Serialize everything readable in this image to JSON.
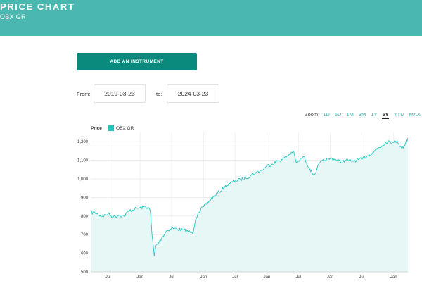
{
  "header": {
    "title": "PRICE CHART",
    "subtitle": "OBX GR"
  },
  "toolbar": {
    "add_instrument_label": "ADD AN INSTRUMENT"
  },
  "date_range": {
    "from_label": "From:",
    "from_value": "2019-03-23",
    "to_label": "to:",
    "to_value": "2024-03-23"
  },
  "zoom": {
    "label": "Zoom:",
    "options": [
      "1D",
      "5D",
      "1M",
      "3M",
      "1Y",
      "5Y",
      "YTD",
      "MAX"
    ],
    "active": "5Y"
  },
  "chart": {
    "price_label": "Price",
    "legend_label": "OBX GR"
  },
  "colors": {
    "header_bg": "#4ab8b0",
    "button_bg": "#098a7c",
    "series_line": "#22c6bf",
    "series_fill": "#e6f7f5",
    "zoom_link": "#3eb6ad"
  },
  "chart_data": {
    "type": "area",
    "title": "",
    "xlabel": "",
    "ylabel": "Price",
    "ylim": [
      500,
      1250
    ],
    "y_ticks": [
      500,
      600,
      700,
      800,
      900,
      1000,
      1100,
      1200
    ],
    "y_tick_labels": [
      "500",
      "600",
      "700",
      "800",
      "900",
      "1,000",
      "1,100",
      "1,200"
    ],
    "x_range": [
      "2019-03-23",
      "2024-03-23"
    ],
    "x_ticks": [
      {
        "date": "2019-07-01",
        "label": "Jul"
      },
      {
        "date": "2020-01-01",
        "label": "Jan"
      },
      {
        "date": "2020-07-01",
        "label": "Jul"
      },
      {
        "date": "2021-01-01",
        "label": "Jan"
      },
      {
        "date": "2021-07-01",
        "label": "Jul"
      },
      {
        "date": "2022-01-01",
        "label": "Jan"
      },
      {
        "date": "2022-07-01",
        "label": "Jul"
      },
      {
        "date": "2023-01-01",
        "label": "Jan"
      },
      {
        "date": "2023-07-01",
        "label": "Jul"
      },
      {
        "date": "2024-01-01",
        "label": "Jan"
      }
    ],
    "series": [
      {
        "name": "OBX GR",
        "points": [
          [
            "2019-03-23",
            815
          ],
          [
            "2019-04-15",
            820
          ],
          [
            "2019-05-10",
            805
          ],
          [
            "2019-06-01",
            800
          ],
          [
            "2019-07-01",
            812
          ],
          [
            "2019-08-01",
            795
          ],
          [
            "2019-09-01",
            805
          ],
          [
            "2019-10-01",
            800
          ],
          [
            "2019-11-01",
            830
          ],
          [
            "2019-12-01",
            838
          ],
          [
            "2020-01-01",
            845
          ],
          [
            "2020-02-01",
            850
          ],
          [
            "2020-02-20",
            845
          ],
          [
            "2020-03-01",
            820
          ],
          [
            "2020-03-10",
            700
          ],
          [
            "2020-03-23",
            585
          ],
          [
            "2020-04-01",
            640
          ],
          [
            "2020-04-20",
            660
          ],
          [
            "2020-05-10",
            690
          ],
          [
            "2020-06-01",
            720
          ],
          [
            "2020-07-01",
            735
          ],
          [
            "2020-08-01",
            730
          ],
          [
            "2020-09-01",
            725
          ],
          [
            "2020-10-01",
            720
          ],
          [
            "2020-10-30",
            705
          ],
          [
            "2020-11-15",
            780
          ],
          [
            "2020-12-01",
            820
          ],
          [
            "2021-01-01",
            850
          ],
          [
            "2021-02-01",
            880
          ],
          [
            "2021-03-01",
            905
          ],
          [
            "2021-04-01",
            930
          ],
          [
            "2021-05-01",
            955
          ],
          [
            "2021-06-01",
            975
          ],
          [
            "2021-07-01",
            990
          ],
          [
            "2021-08-01",
            995
          ],
          [
            "2021-09-01",
            1005
          ],
          [
            "2021-10-01",
            1020
          ],
          [
            "2021-11-01",
            1035
          ],
          [
            "2021-12-01",
            1045
          ],
          [
            "2022-01-01",
            1070
          ],
          [
            "2022-02-01",
            1080
          ],
          [
            "2022-03-01",
            1095
          ],
          [
            "2022-04-01",
            1105
          ],
          [
            "2022-05-01",
            1125
          ],
          [
            "2022-06-01",
            1150
          ],
          [
            "2022-06-20",
            1085
          ],
          [
            "2022-07-01",
            1095
          ],
          [
            "2022-08-01",
            1120
          ],
          [
            "2022-09-01",
            1060
          ],
          [
            "2022-09-28",
            1020
          ],
          [
            "2022-10-15",
            1050
          ],
          [
            "2022-11-01",
            1085
          ],
          [
            "2022-12-01",
            1100
          ],
          [
            "2023-01-01",
            1110
          ],
          [
            "2023-02-01",
            1105
          ],
          [
            "2023-03-01",
            1090
          ],
          [
            "2023-04-01",
            1100
          ],
          [
            "2023-05-01",
            1095
          ],
          [
            "2023-06-01",
            1100
          ],
          [
            "2023-07-01",
            1105
          ],
          [
            "2023-08-01",
            1125
          ],
          [
            "2023-09-01",
            1140
          ],
          [
            "2023-10-01",
            1165
          ],
          [
            "2023-10-31",
            1180
          ],
          [
            "2023-11-15",
            1195
          ],
          [
            "2023-12-01",
            1205
          ],
          [
            "2024-01-01",
            1195
          ],
          [
            "2024-01-20",
            1205
          ],
          [
            "2024-02-10",
            1175
          ],
          [
            "2024-02-25",
            1165
          ],
          [
            "2024-03-10",
            1195
          ],
          [
            "2024-03-23",
            1220
          ]
        ]
      }
    ]
  }
}
